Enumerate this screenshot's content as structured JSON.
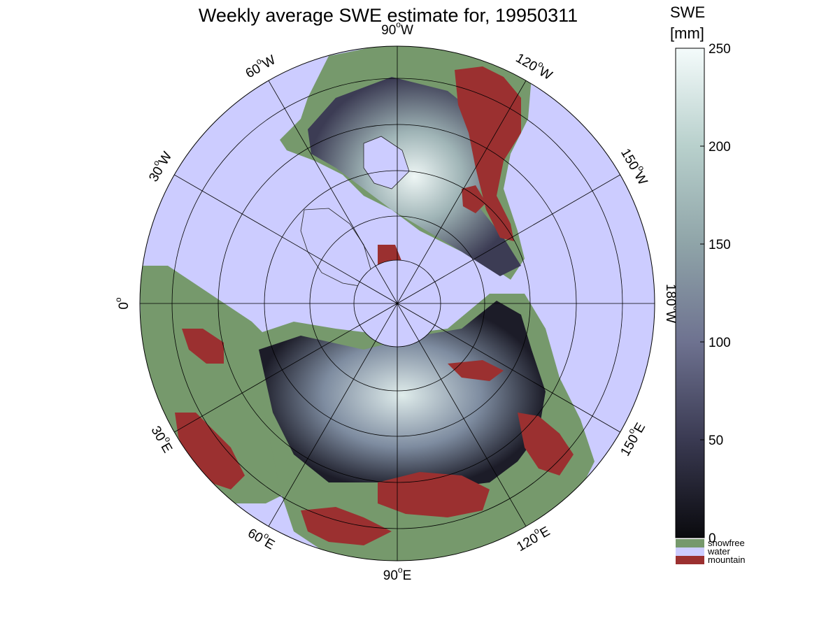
{
  "title": "Weekly average SWE estimate for, 19950311",
  "colorbar": {
    "label_line1": "SWE",
    "label_line2": "[mm]",
    "min": 0,
    "max": 250,
    "ticks": [
      "0",
      "50",
      "100",
      "150",
      "200",
      "250"
    ],
    "colormap": [
      "#0a0a0e",
      "#3a3a52",
      "#6e7290",
      "#8fa4a8",
      "#b8d0cc",
      "#f4fbfb"
    ]
  },
  "legend": [
    {
      "label": "snowfree",
      "color": "#76996c"
    },
    {
      "label": "water",
      "color": "#ccccff"
    },
    {
      "label": "mountain",
      "color": "#9b3030"
    }
  ],
  "map": {
    "projection": "north-polar-stereographic",
    "ocean_color": "#ccccff",
    "longitude_labels": [
      {
        "deg": "90",
        "hemi": "W"
      },
      {
        "deg": "120",
        "hemi": "W"
      },
      {
        "deg": "150",
        "hemi": "W"
      },
      {
        "deg": "180",
        "hemi": "W"
      },
      {
        "deg": "150",
        "hemi": "E"
      },
      {
        "deg": "120",
        "hemi": "E"
      },
      {
        "deg": "90",
        "hemi": "E"
      },
      {
        "deg": "60",
        "hemi": "E"
      },
      {
        "deg": "30",
        "hemi": "E"
      },
      {
        "deg": "0",
        "hemi": ""
      },
      {
        "deg": "30",
        "hemi": "W"
      },
      {
        "deg": "60",
        "hemi": "W"
      }
    ]
  }
}
